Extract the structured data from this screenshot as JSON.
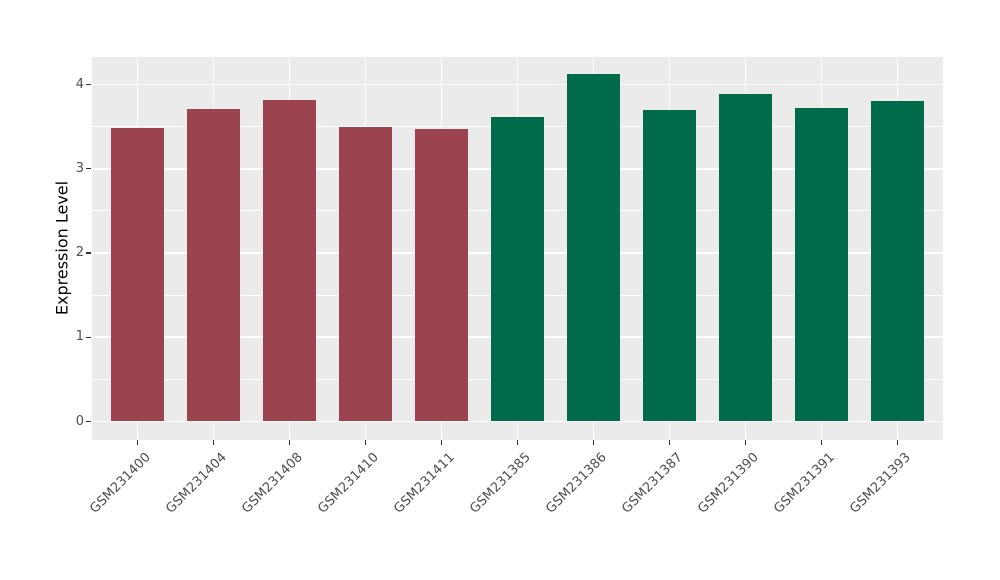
{
  "chart_data": {
    "type": "bar",
    "title": "",
    "xlabel": "",
    "ylabel": "Expression Level",
    "categories": [
      "GSM231400",
      "GSM231404",
      "GSM231408",
      "GSM231410",
      "GSM231411",
      "GSM231385",
      "GSM231386",
      "GSM231387",
      "GSM231390",
      "GSM231391",
      "GSM231393"
    ],
    "values": [
      3.48,
      3.71,
      3.82,
      3.49,
      3.47,
      3.61,
      4.12,
      3.7,
      3.89,
      3.72,
      3.8
    ],
    "bar_colors": [
      "#9C4350",
      "#9C4350",
      "#9C4350",
      "#9C4350",
      "#9C4350",
      "#006B4A",
      "#006B4A",
      "#006B4A",
      "#006B4A",
      "#006B4A",
      "#006B4A"
    ],
    "group_colors": {
      "left_group": "#9C4350",
      "right_group": "#006B4A"
    },
    "y_ticks": [
      "0",
      "1",
      "2",
      "3",
      "4"
    ],
    "y_minor_ticks": [
      0.5,
      1.5,
      2.5,
      3.5
    ],
    "ylim": [
      -0.22,
      4.33
    ],
    "x_tick_rotation_deg": 45,
    "grid": "horizontal major+minor, vertical major at category centers",
    "legend": "none",
    "panel_background": "#EBEBEB",
    "grid_color": "#FFFFFF",
    "axis_text_color": "#4D4D4D",
    "axis_title_color": "#000000",
    "figure_background": "#FFFFFF"
  }
}
